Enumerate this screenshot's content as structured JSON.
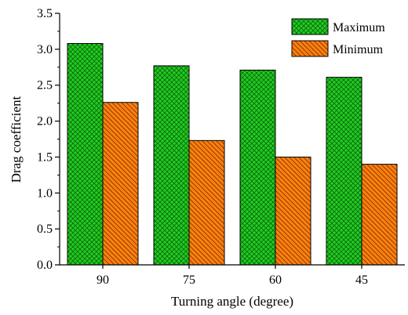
{
  "chart_data": {
    "type": "bar",
    "title": "",
    "xlabel": "Turning angle (degree)",
    "ylabel": "Drag coefficient",
    "categories": [
      "90",
      "75",
      "60",
      "45"
    ],
    "series": [
      {
        "name": "Maximum",
        "values": [
          3.08,
          2.77,
          2.71,
          2.61
        ],
        "color": "#22cc22",
        "pattern": "crosshatch"
      },
      {
        "name": "Minimum",
        "values": [
          2.26,
          1.73,
          1.5,
          1.4
        ],
        "color": "#ff7f0e",
        "pattern": "diagonal-hatch"
      }
    ],
    "ylim": [
      0,
      3.5
    ],
    "yticks": [
      "0.0",
      "0.5",
      "1.0",
      "1.5",
      "2.0",
      "2.5",
      "3.0",
      "3.5"
    ],
    "grid": false,
    "legend_position": "top-right"
  }
}
